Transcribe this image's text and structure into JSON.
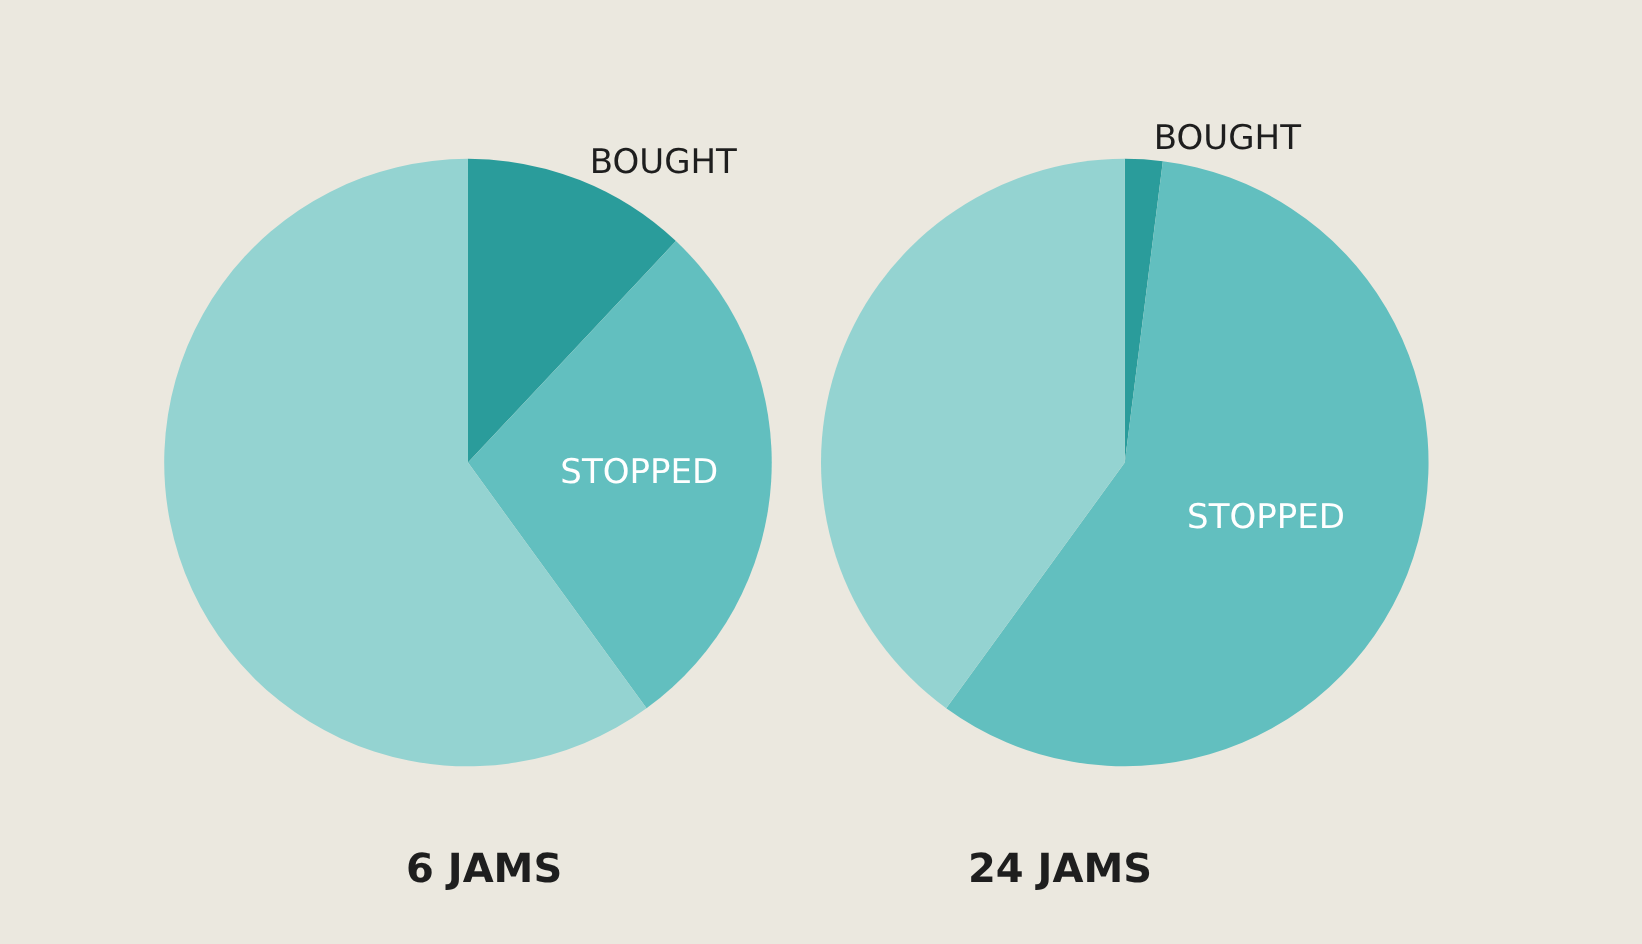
{
  "chart_data": [
    {
      "type": "pie",
      "title": "6 JAMS",
      "categories": [
        "BOUGHT",
        "STOPPED",
        null
      ],
      "values": [
        12,
        28,
        60
      ],
      "colors": [
        "#2a9c9b",
        "#62bfbf",
        "#94d3d1"
      ]
    },
    {
      "type": "pie",
      "title": "24 JAMS",
      "categories": [
        "BOUGHT",
        "STOPPED",
        null
      ],
      "values": [
        2,
        58,
        40
      ],
      "colors": [
        "#2a9c9b",
        "#62bfbf",
        "#94d3d1"
      ]
    }
  ]
}
